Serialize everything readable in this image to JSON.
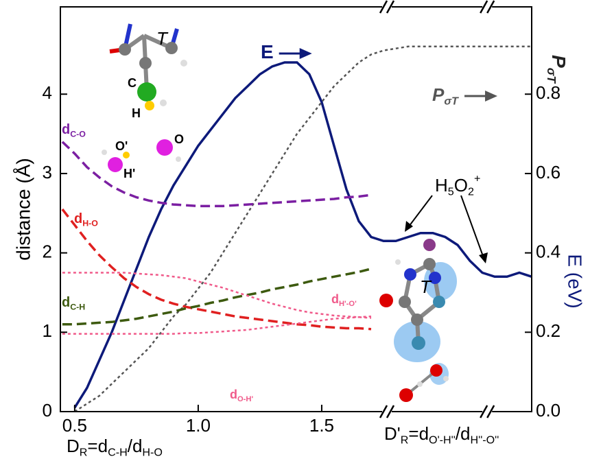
{
  "chart_data": {
    "type": "line",
    "ylabel": "distance (Å)",
    "y2label": "E (eV)",
    "y2label2": [
      {
        "text": "P"
      },
      {
        "text": "σT",
        "sub": true
      }
    ],
    "xlabel": [
      {
        "text": "D"
      },
      {
        "text": "R",
        "sub": true
      },
      {
        "text": "=d"
      },
      {
        "text": "C-H",
        "sub": true
      },
      {
        "text": "/d"
      },
      {
        "text": "H-O",
        "sub": true
      }
    ],
    "xlabel2": [
      {
        "text": "D'"
      },
      {
        "text": "R",
        "sub": true
      },
      {
        "text": "=d"
      },
      {
        "text": "O'-H''",
        "sub": true
      },
      {
        "text": "/d"
      },
      {
        "text": "H''-O''",
        "sub": true
      }
    ],
    "annotation": [
      {
        "text": "H"
      },
      {
        "text": "5",
        "sub": true
      },
      {
        "text": "O"
      },
      {
        "text": "2",
        "sub": true
      },
      {
        "text": "+",
        "sup": true
      }
    ],
    "molecule_labels": [
      "T",
      "C",
      "H",
      "O'",
      "H'",
      "O",
      "T"
    ],
    "xlim": [
      0.442,
      2.35
    ],
    "xticks": [
      0.5,
      {
        "value": 1,
        "label": "1.0"
      },
      1.5
    ],
    "axis_breaks": [
      1.764,
      2.17
    ],
    "ylim": [
      0,
      5.1
    ],
    "yticks": [
      0,
      1,
      2,
      3,
      4
    ],
    "y2lim": [
      0,
      1.02
    ],
    "y2ticks": [
      {
        "value": 0,
        "label": "0.0"
      },
      0.2,
      0.4,
      0.6,
      0.8
    ],
    "x": [
      0.45,
      0.5,
      0.55,
      0.6,
      0.65,
      0.7,
      0.75,
      0.8,
      0.85,
      0.9,
      0.95,
      1.0,
      1.05,
      1.1,
      1.15,
      1.2,
      1.25,
      1.3,
      1.35,
      1.4,
      1.45,
      1.5,
      1.55,
      1.6,
      1.65,
      1.7,
      1.75,
      1.8,
      1.85,
      1.9,
      1.95,
      2.0,
      2.05,
      2.1,
      2.15,
      2.2,
      2.25,
      2.3,
      2.35
    ],
    "series": [
      {
        "name": [
          {
            "text": "E"
          }
        ],
        "color": "#0d1a7a",
        "axis": "y2",
        "dash": "solid",
        "values": [
          null,
          0.01,
          0.06,
          0.13,
          0.2,
          0.28,
          0.36,
          0.44,
          0.51,
          0.57,
          0.62,
          0.67,
          0.71,
          0.75,
          0.79,
          0.82,
          0.85,
          0.87,
          0.88,
          0.88,
          0.85,
          0.78,
          0.67,
          0.56,
          0.48,
          0.44,
          0.43,
          0.43,
          0.44,
          0.45,
          0.45,
          0.44,
          0.42,
          0.38,
          0.35,
          0.34,
          0.34,
          0.35,
          0.34
        ]
      },
      {
        "name": [
          {
            "text": "P"
          },
          {
            "text": "σT",
            "sub": true
          }
        ],
        "color": "#555555",
        "axis": "y2",
        "dash": "dotted",
        "values": [
          null,
          0.0,
          0.02,
          0.04,
          0.07,
          0.1,
          0.13,
          0.16,
          0.2,
          0.24,
          0.27,
          0.31,
          0.35,
          0.4,
          0.45,
          0.5,
          0.55,
          0.6,
          0.65,
          0.7,
          0.74,
          0.78,
          0.82,
          0.85,
          0.88,
          0.9,
          0.91,
          0.915,
          0.92,
          0.92,
          0.92,
          0.92,
          0.92,
          0.92,
          0.92,
          0.92,
          0.92,
          0.92,
          0.92
        ]
      },
      {
        "name": [
          {
            "text": "d"
          },
          {
            "text": "C-O",
            "sub": true
          }
        ],
        "color": "#7b1fa2",
        "dash": "dashed",
        "values": [
          3.4,
          3.25,
          3.08,
          2.95,
          2.84,
          2.76,
          2.7,
          2.66,
          2.63,
          2.61,
          2.6,
          2.59,
          2.59,
          2.59,
          2.6,
          2.61,
          2.62,
          2.63,
          2.64,
          2.65,
          2.66,
          2.67,
          2.68,
          2.7,
          2.71,
          2.73,
          null,
          null,
          null,
          null,
          null,
          null,
          null,
          null,
          null,
          null,
          null,
          null,
          null
        ]
      },
      {
        "name": [
          {
            "text": "d"
          },
          {
            "text": "H-O",
            "sub": true
          }
        ],
        "color": "#e02020",
        "dash": "dashed",
        "values": [
          2.55,
          2.35,
          2.15,
          1.97,
          1.82,
          1.68,
          1.57,
          1.48,
          1.41,
          1.36,
          1.32,
          1.29,
          1.26,
          1.23,
          1.2,
          1.18,
          1.16,
          1.14,
          1.12,
          1.1,
          1.09,
          1.07,
          1.06,
          1.05,
          1.05,
          1.04,
          null,
          null,
          null,
          null,
          null,
          null,
          null,
          null,
          null,
          null,
          null,
          null,
          null
        ]
      },
      {
        "name": [
          {
            "text": "d"
          },
          {
            "text": "C-H",
            "sub": true
          }
        ],
        "color": "#3d5a0f",
        "dash": "dashed",
        "values": [
          1.1,
          1.1,
          1.11,
          1.12,
          1.13,
          1.15,
          1.17,
          1.2,
          1.23,
          1.26,
          1.3,
          1.33,
          1.37,
          1.4,
          1.44,
          1.47,
          1.5,
          1.54,
          1.57,
          1.6,
          1.64,
          1.67,
          1.7,
          1.73,
          1.76,
          1.8,
          null,
          null,
          null,
          null,
          null,
          null,
          null,
          null,
          null,
          null,
          null,
          null,
          null
        ]
      },
      {
        "name": [
          {
            "text": "d"
          },
          {
            "text": "H'-O'",
            "sub": true
          }
        ],
        "color": "#f05a8a",
        "dash": "dotted",
        "values": [
          1.75,
          1.75,
          1.75,
          1.75,
          1.75,
          1.75,
          1.74,
          1.73,
          1.72,
          1.7,
          1.68,
          1.64,
          1.6,
          1.56,
          1.51,
          1.46,
          1.41,
          1.36,
          1.32,
          1.28,
          1.25,
          1.23,
          1.21,
          1.2,
          1.19,
          1.18,
          null,
          null,
          null,
          null,
          null,
          null,
          null,
          null,
          null,
          null,
          null,
          null,
          null
        ]
      },
      {
        "name": [
          {
            "text": "d"
          },
          {
            "text": "O-H'",
            "sub": true
          }
        ],
        "color": "#f05a8a",
        "dash": "dotted",
        "values": [
          0.98,
          0.98,
          0.98,
          0.98,
          0.98,
          0.98,
          0.98,
          0.98,
          0.98,
          0.98,
          0.99,
          0.99,
          1.0,
          1.01,
          1.02,
          1.03,
          1.05,
          1.07,
          1.09,
          1.11,
          1.13,
          1.15,
          1.17,
          1.18,
          1.19,
          1.2,
          null,
          null,
          null,
          null,
          null,
          null,
          null,
          null,
          null,
          null,
          null,
          null,
          null
        ]
      }
    ]
  }
}
